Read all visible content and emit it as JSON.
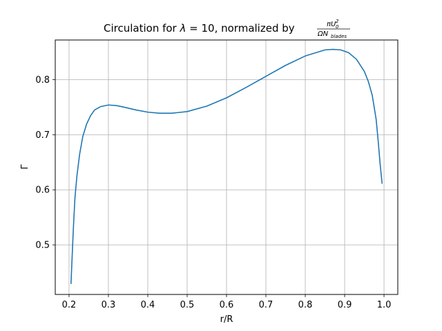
{
  "chart_data": {
    "type": "line",
    "title": {
      "prefix": "Circulation for ",
      "lambda_symbol": "λ",
      "equals_value": " = 10, normalized by ",
      "numerator": {
        "a": "πU",
        "sup": "2",
        "sub": "0"
      },
      "denominator": {
        "a": "ΩN",
        "sub": "blades"
      }
    },
    "xlabel": "r/R",
    "ylabel": "Γ",
    "xlim": [
      0.165,
      1.035
    ],
    "ylim": [
      0.41,
      0.872
    ],
    "xticks": [
      0.2,
      0.3,
      0.4,
      0.5,
      0.6,
      0.7,
      0.8,
      0.9,
      1.0
    ],
    "xtick_labels": [
      "0.2",
      "0.3",
      "0.4",
      "0.5",
      "0.6",
      "0.7",
      "0.8",
      "0.9",
      "1.0"
    ],
    "yticks": [
      0.5,
      0.6,
      0.7,
      0.8
    ],
    "ytick_labels": [
      "0.5",
      "0.6",
      "0.7",
      "0.8"
    ],
    "grid": true,
    "color": "#1f77b4",
    "series": [
      {
        "x": [
          0.205,
          0.208,
          0.211,
          0.215,
          0.22,
          0.227,
          0.235,
          0.245,
          0.255,
          0.265,
          0.28,
          0.3,
          0.32,
          0.34,
          0.37,
          0.4,
          0.43,
          0.46,
          0.5,
          0.55,
          0.6,
          0.65,
          0.7,
          0.75,
          0.8,
          0.85,
          0.87,
          0.89,
          0.91,
          0.93,
          0.95,
          0.96,
          0.97,
          0.98,
          0.985,
          0.99,
          0.995
        ],
        "y": [
          0.43,
          0.48,
          0.53,
          0.585,
          0.625,
          0.665,
          0.697,
          0.72,
          0.735,
          0.745,
          0.751,
          0.754,
          0.753,
          0.75,
          0.745,
          0.741,
          0.739,
          0.739,
          0.742,
          0.752,
          0.767,
          0.786,
          0.806,
          0.826,
          0.843,
          0.854,
          0.855,
          0.854,
          0.849,
          0.837,
          0.815,
          0.797,
          0.772,
          0.728,
          0.69,
          0.648,
          0.612
        ]
      }
    ]
  }
}
